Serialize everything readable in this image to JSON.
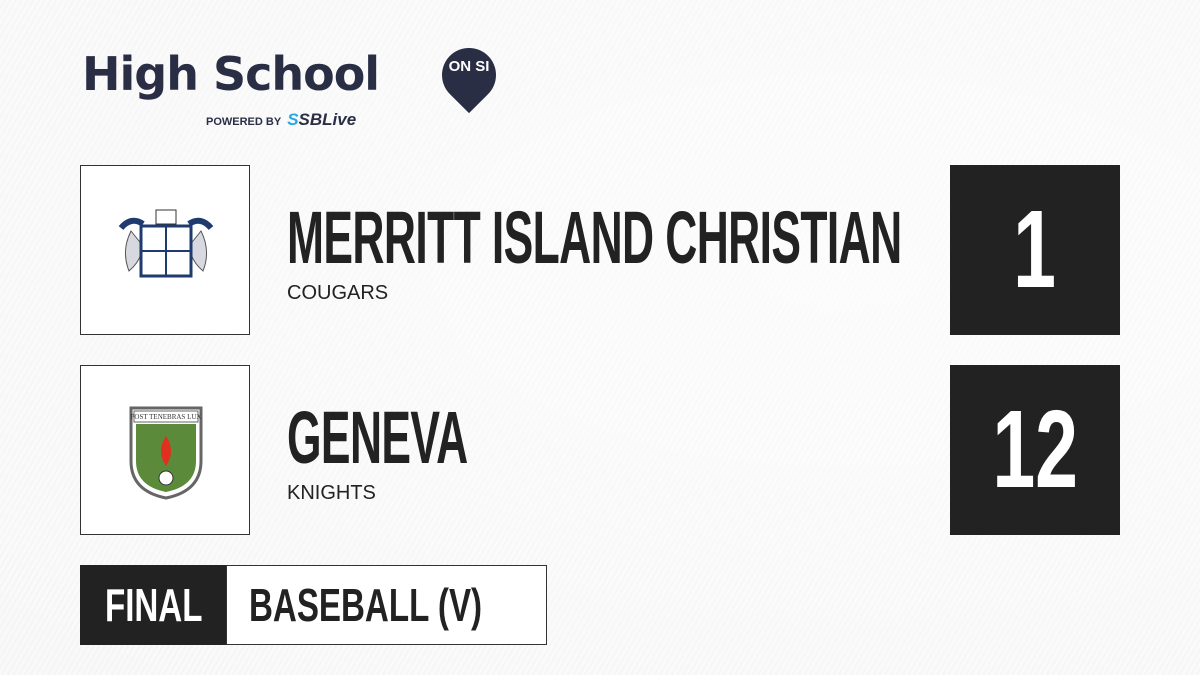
{
  "brand": {
    "title": "High School",
    "badge": "ON SI",
    "powered_by": "POWERED BY",
    "partner": "SBLive"
  },
  "teams": [
    {
      "name": "MERRITT ISLAND CHRISTIAN",
      "mascot": "COUGARS",
      "score": "1",
      "crest": "merritt-island-christian-crest"
    },
    {
      "name": "GENEVA",
      "mascot": "KNIGHTS",
      "score": "12",
      "crest": "geneva-crest",
      "crest_motto": "POST TENEBRAS LUX"
    }
  ],
  "status": "FINAL",
  "sport": "BASEBALL (V)",
  "colors": {
    "brand_navy": "#2a2e45",
    "sblive_blue": "#29a7df",
    "dark": "#222222"
  }
}
